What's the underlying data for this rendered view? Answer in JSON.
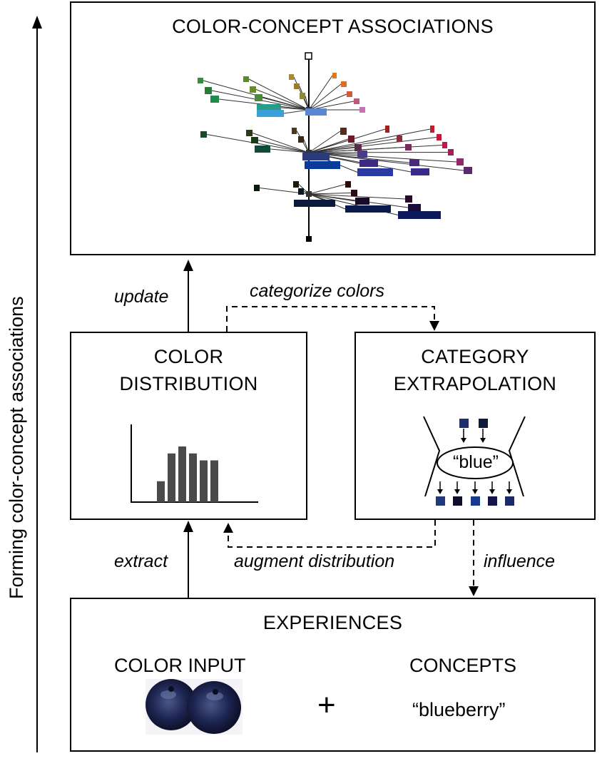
{
  "side_label": "Forming color-concept associations",
  "boxes": {
    "associations": {
      "title": "COLOR-CONCEPT ASSOCIATIONS"
    },
    "distribution": {
      "title_line1": "COLOR",
      "title_line2": "DISTRIBUTION"
    },
    "extrapolation": {
      "title_line1": "CATEGORY",
      "title_line2": "EXTRAPOLATION",
      "category_word": "“blue”"
    },
    "experiences": {
      "title": "EXPERIENCES",
      "color_input": "COLOR INPUT",
      "plus": "+",
      "concepts": "CONCEPTS",
      "concept_word": "“blueberry”"
    }
  },
  "arrows": {
    "update": "update",
    "categorize": "categorize colors",
    "extract": "extract",
    "augment": "augment distribution",
    "influence": "influence"
  },
  "histogram": {
    "values": [
      3,
      7,
      8,
      7,
      6,
      6
    ]
  },
  "colors": {
    "category_swatches_top": [
      "#1f2f6e",
      "#0d1a3a"
    ],
    "category_swatches_bottom": [
      "#223a7a",
      "#0b0f2b",
      "#1a3a90",
      "#15154a",
      "#1a2a66"
    ]
  }
}
